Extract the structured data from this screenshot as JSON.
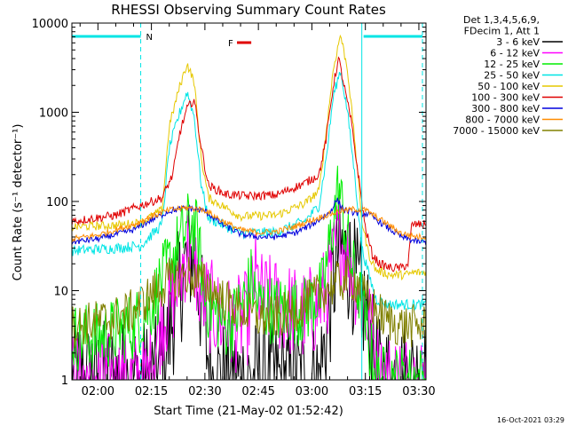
{
  "chart_data": {
    "type": "line",
    "title": "RHESSI Observing Summary Count Rates",
    "xlabel": "Start Time (21-May-02 01:52:42)",
    "ylabel": "Count Rate (s⁻¹ detector⁻¹)",
    "yscale": "log",
    "ylim": [
      1,
      10000
    ],
    "xlim": [
      "01:52:42",
      "03:32:00"
    ],
    "x_ticks": [
      "02:00",
      "02:15",
      "02:30",
      "02:45",
      "03:00",
      "03:15",
      "03:30"
    ],
    "y_ticks": [
      "1",
      "10",
      "100",
      "1000",
      "10000"
    ],
    "legend_header": [
      "Det 1,3,4,5,6,9,",
      "FDecim 1, Att 1"
    ],
    "legend_position": "top-right, outside plot",
    "timestamp": "16-Oct-2021 03:29",
    "flags": [
      {
        "label": "N",
        "color": "#00e5e5",
        "intervals": [
          [
            "01:52:42",
            "02:12:00"
          ],
          [
            "03:14:30",
            "03:31:00"
          ]
        ]
      },
      {
        "label": "F",
        "color": "#e00000",
        "intervals": [
          [
            "02:39:00",
            "02:43:00"
          ]
        ]
      }
    ],
    "vlines": [
      {
        "t": "02:12:00",
        "color": "#00e5e5",
        "style": "dashed"
      },
      {
        "t": "03:14:00",
        "color": "#00e5e5",
        "style": "solid"
      },
      {
        "t": "03:31:00",
        "color": "#00e5e5",
        "style": "dashed"
      }
    ],
    "series": [
      {
        "name": "3 - 6 keV",
        "color": "#000000",
        "noise": 0.7,
        "min": 1,
        "points": [
          [
            "01:52:42",
            1
          ],
          [
            "02:16:00",
            1
          ],
          [
            "02:19:00",
            2
          ],
          [
            "02:22:00",
            8
          ],
          [
            "02:25:00",
            22
          ],
          [
            "02:26:30",
            26
          ],
          [
            "02:28:00",
            14
          ],
          [
            "02:30:00",
            3
          ],
          [
            "02:32:00",
            1
          ],
          [
            "03:02:00",
            1
          ],
          [
            "03:04:00",
            3
          ],
          [
            "03:06:00",
            12
          ],
          [
            "03:07:30",
            30
          ],
          [
            "03:09:00",
            25
          ],
          [
            "03:11:00",
            18
          ],
          [
            "03:13:00",
            10
          ],
          [
            "03:15:00",
            6
          ],
          [
            "03:17:00",
            2
          ],
          [
            "03:19:00",
            1
          ],
          [
            "03:32:00",
            1
          ]
        ]
      },
      {
        "name": "6 - 12 keV",
        "color": "#ff00ff",
        "noise": 0.55,
        "min": 1,
        "points": [
          [
            "01:52:42",
            1
          ],
          [
            "02:14:00",
            1
          ],
          [
            "02:18:00",
            5
          ],
          [
            "02:22:00",
            10
          ],
          [
            "02:25:00",
            30
          ],
          [
            "02:27:00",
            22
          ],
          [
            "02:29:00",
            9
          ],
          [
            "02:31:00",
            7
          ],
          [
            "02:34:00",
            5
          ],
          [
            "02:38:00",
            4
          ],
          [
            "02:42:00",
            5
          ],
          [
            "02:44:00",
            14
          ],
          [
            "02:46:00",
            8
          ],
          [
            "02:50:00",
            7
          ],
          [
            "02:54:00",
            6
          ],
          [
            "02:58:00",
            5
          ],
          [
            "03:02:00",
            7
          ],
          [
            "03:05:00",
            12
          ],
          [
            "03:07:30",
            45
          ],
          [
            "03:09:00",
            30
          ],
          [
            "03:11:00",
            22
          ],
          [
            "03:13:00",
            10
          ],
          [
            "03:15:00",
            6
          ],
          [
            "03:17:00",
            3
          ],
          [
            "03:19:00",
            1
          ],
          [
            "03:32:00",
            1
          ]
        ]
      },
      {
        "name": "12 - 25 keV",
        "color": "#00ee00",
        "noise": 0.4,
        "min": 1,
        "points": [
          [
            "01:52:42",
            3
          ],
          [
            "02:00:00",
            3
          ],
          [
            "02:10:00",
            4
          ],
          [
            "02:15:00",
            7
          ],
          [
            "02:20:00",
            20
          ],
          [
            "02:23:00",
            35
          ],
          [
            "02:26:00",
            60
          ],
          [
            "02:28:00",
            40
          ],
          [
            "02:30:00",
            8
          ],
          [
            "02:32:00",
            6
          ],
          [
            "02:37:00",
            4
          ],
          [
            "02:41:00",
            8
          ],
          [
            "02:43:00",
            13
          ],
          [
            "02:45:00",
            7
          ],
          [
            "02:50:00",
            6
          ],
          [
            "02:58:00",
            6
          ],
          [
            "03:03:00",
            10
          ],
          [
            "03:06:00",
            60
          ],
          [
            "03:07:30",
            150
          ],
          [
            "03:09:00",
            60
          ],
          [
            "03:11:00",
            20
          ],
          [
            "03:13:00",
            10
          ],
          [
            "03:15:00",
            4
          ],
          [
            "03:18:00",
            1
          ],
          [
            "03:32:00",
            1
          ]
        ]
      },
      {
        "name": "25 - 50 keV",
        "color": "#00e5e5",
        "noise": 0.06,
        "min": 1,
        "points": [
          [
            "01:52:42",
            28
          ],
          [
            "02:05:00",
            30
          ],
          [
            "02:12:00",
            32
          ],
          [
            "02:18:00",
            55
          ],
          [
            "02:20:00",
            400
          ],
          [
            "02:23:00",
            1000
          ],
          [
            "02:25:00",
            1700
          ],
          [
            "02:27:00",
            900
          ],
          [
            "02:29:00",
            150
          ],
          [
            "02:31:00",
            65
          ],
          [
            "02:40:00",
            44
          ],
          [
            "02:50:00",
            45
          ],
          [
            "02:58:00",
            60
          ],
          [
            "03:02:00",
            90
          ],
          [
            "03:04:00",
            300
          ],
          [
            "03:06:00",
            1500
          ],
          [
            "03:08:00",
            3000
          ],
          [
            "03:10:00",
            1000
          ],
          [
            "03:12:00",
            200
          ],
          [
            "03:14:00",
            30
          ],
          [
            "03:16:00",
            15
          ],
          [
            "03:18:00",
            8
          ],
          [
            "03:21:00",
            7
          ],
          [
            "03:24:00",
            7
          ],
          [
            "03:27:00",
            7
          ],
          [
            "03:29:00",
            7
          ],
          [
            "03:32:00",
            7
          ]
        ]
      },
      {
        "name": "50 - 100 keV",
        "color": "#e6c800",
        "noise": 0.05,
        "min": 1,
        "points": [
          [
            "01:52:42",
            52
          ],
          [
            "02:05:00",
            54
          ],
          [
            "02:12:00",
            58
          ],
          [
            "02:18:00",
            80
          ],
          [
            "02:20:00",
            700
          ],
          [
            "02:23:00",
            2000
          ],
          [
            "02:25:00",
            3500
          ],
          [
            "02:27:00",
            2200
          ],
          [
            "02:29:00",
            300
          ],
          [
            "02:31:00",
            110
          ],
          [
            "02:40:00",
            68
          ],
          [
            "02:50:00",
            70
          ],
          [
            "02:58:00",
            95
          ],
          [
            "03:02:00",
            130
          ],
          [
            "03:04:00",
            600
          ],
          [
            "03:06:00",
            3000
          ],
          [
            "03:08:00",
            7500
          ],
          [
            "03:10:00",
            3000
          ],
          [
            "03:12:00",
            500
          ],
          [
            "03:14:00",
            60
          ],
          [
            "03:16:00",
            25
          ],
          [
            "03:18:00",
            17
          ],
          [
            "03:22:00",
            15
          ],
          [
            "03:26:00",
            15
          ],
          [
            "03:29:00",
            16
          ],
          [
            "03:32:00",
            16
          ]
        ]
      },
      {
        "name": "100 - 300 keV",
        "color": "#e00000",
        "noise": 0.05,
        "min": 1,
        "points": [
          [
            "01:52:42",
            60
          ],
          [
            "02:05:00",
            70
          ],
          [
            "02:12:00",
            90
          ],
          [
            "02:18:00",
            110
          ],
          [
            "02:21:00",
            200
          ],
          [
            "02:23:00",
            600
          ],
          [
            "02:25:00",
            1100
          ],
          [
            "02:27:00",
            1400
          ],
          [
            "02:29:00",
            400
          ],
          [
            "02:31:00",
            150
          ],
          [
            "02:36:00",
            120
          ],
          [
            "02:42:00",
            115
          ],
          [
            "02:50:00",
            118
          ],
          [
            "02:58:00",
            160
          ],
          [
            "03:02:00",
            200
          ],
          [
            "03:04:00",
            500
          ],
          [
            "03:06:00",
            2000
          ],
          [
            "03:07:30",
            4000
          ],
          [
            "03:09:00",
            2000
          ],
          [
            "03:11:00",
            800
          ],
          [
            "03:13:00",
            200
          ],
          [
            "03:15:00",
            50
          ],
          [
            "03:17:00",
            25
          ],
          [
            "03:19:00",
            20
          ],
          [
            "03:22:00",
            18
          ],
          [
            "03:25:00",
            18
          ],
          [
            "03:27:00",
            20
          ],
          [
            "03:28:00",
            55
          ],
          [
            "03:32:00",
            55
          ]
        ]
      },
      {
        "name": "300 - 800 keV",
        "color": "#0000dd",
        "noise": 0.035,
        "min": 1,
        "points": [
          [
            "01:52:42",
            35
          ],
          [
            "02:00:00",
            38
          ],
          [
            "02:10:00",
            48
          ],
          [
            "02:15:00",
            62
          ],
          [
            "02:20:00",
            78
          ],
          [
            "02:25:00",
            85
          ],
          [
            "02:30:00",
            78
          ],
          [
            "02:35:00",
            55
          ],
          [
            "02:40:00",
            43
          ],
          [
            "02:45:00",
            40
          ],
          [
            "02:50:00",
            40
          ],
          [
            "02:55:00",
            44
          ],
          [
            "03:00:00",
            55
          ],
          [
            "03:05:00",
            75
          ],
          [
            "03:07:00",
            105
          ],
          [
            "03:09:00",
            80
          ],
          [
            "03:12:00",
            75
          ],
          [
            "03:16:00",
            72
          ],
          [
            "03:20:00",
            55
          ],
          [
            "03:25:00",
            40
          ],
          [
            "03:30:00",
            35
          ],
          [
            "03:32:00",
            35
          ]
        ]
      },
      {
        "name": "800 - 7000 keV",
        "color": "#ff8c00",
        "noise": 0.035,
        "min": 1,
        "points": [
          [
            "01:52:42",
            38
          ],
          [
            "02:00:00",
            42
          ],
          [
            "02:10:00",
            55
          ],
          [
            "02:15:00",
            68
          ],
          [
            "02:20:00",
            80
          ],
          [
            "02:25:00",
            85
          ],
          [
            "02:30:00",
            80
          ],
          [
            "02:35:00",
            60
          ],
          [
            "02:40:00",
            48
          ],
          [
            "02:45:00",
            45
          ],
          [
            "02:50:00",
            46
          ],
          [
            "02:55:00",
            52
          ],
          [
            "03:00:00",
            62
          ],
          [
            "03:05:00",
            72
          ],
          [
            "03:08:00",
            78
          ],
          [
            "03:12:00",
            82
          ],
          [
            "03:15:00",
            80
          ],
          [
            "03:20:00",
            60
          ],
          [
            "03:25:00",
            44
          ],
          [
            "03:30:00",
            40
          ],
          [
            "03:32:00",
            40
          ]
        ]
      },
      {
        "name": "7000 - 15000 keV",
        "color": "#808000",
        "noise": 0.25,
        "min": 1,
        "points": [
          [
            "01:52:42",
            4
          ],
          [
            "02:00:00",
            4.5
          ],
          [
            "02:05:00",
            5
          ],
          [
            "02:10:00",
            6
          ],
          [
            "02:15:00",
            9
          ],
          [
            "02:20:00",
            13
          ],
          [
            "02:25:00",
            15
          ],
          [
            "02:30:00",
            12
          ],
          [
            "02:35:00",
            8
          ],
          [
            "02:40:00",
            6
          ],
          [
            "02:45:00",
            5
          ],
          [
            "02:50:00",
            5
          ],
          [
            "02:55:00",
            6
          ],
          [
            "03:00:00",
            8
          ],
          [
            "03:05:00",
            11
          ],
          [
            "03:10:00",
            14
          ],
          [
            "03:13:00",
            12
          ],
          [
            "03:15:00",
            8
          ],
          [
            "03:20:00",
            5
          ],
          [
            "03:25:00",
            4
          ],
          [
            "03:30:00",
            4
          ],
          [
            "03:32:00",
            4
          ]
        ]
      }
    ]
  }
}
